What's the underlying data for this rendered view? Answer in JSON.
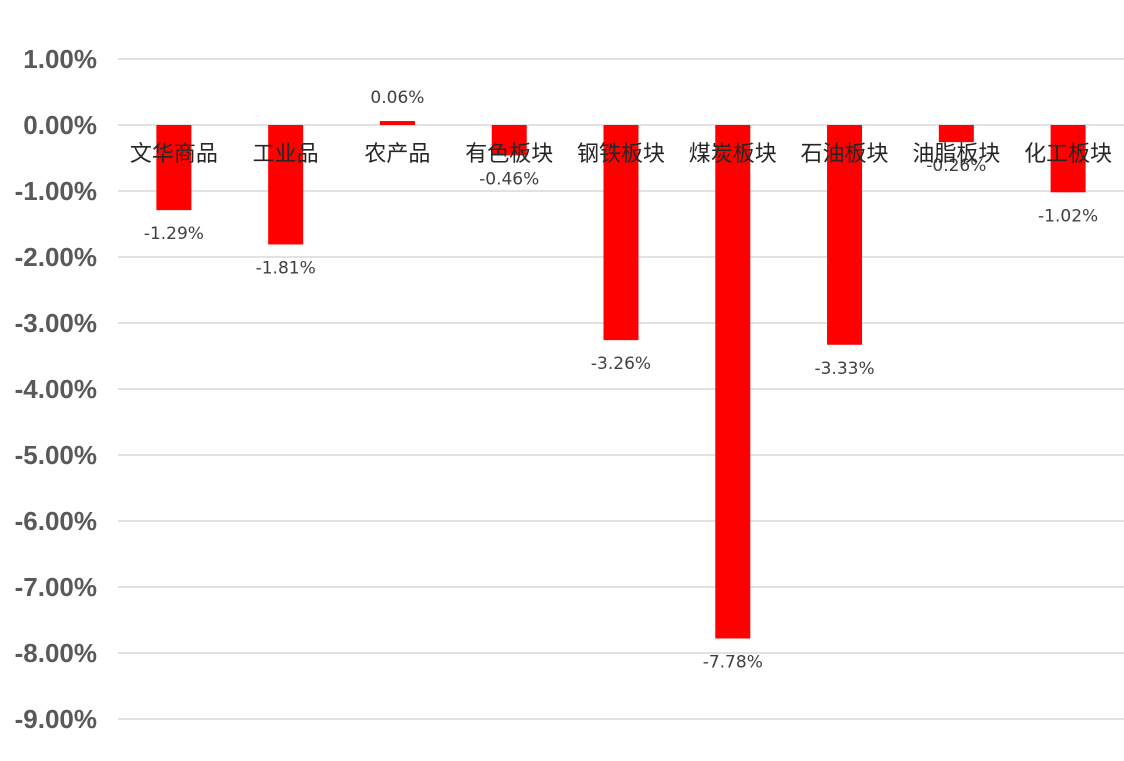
{
  "chart_data": {
    "type": "bar",
    "categories": [
      "文华商品",
      "工业品",
      "农产品",
      "有色板块",
      "钢铁板块",
      "煤炭板块",
      "石油板块",
      "油脂板块",
      "化工板块"
    ],
    "values": [
      -1.29,
      -1.81,
      0.06,
      -0.46,
      -3.26,
      -7.78,
      -3.33,
      -0.26,
      -1.02
    ],
    "data_labels": [
      "-1.29%",
      "-1.81%",
      "0.06%",
      "-0.46%",
      "-3.26%",
      "-7.78%",
      "-3.33%",
      "-0.26%",
      "-1.02%"
    ],
    "y_ticks": [
      1,
      0,
      -1,
      -2,
      -3,
      -4,
      -5,
      -6,
      -7,
      -8,
      -9
    ],
    "y_tick_labels": [
      "1.00%",
      "0.00%",
      "-1.00%",
      "-2.00%",
      "-3.00%",
      "-4.00%",
      "-5.00%",
      "-6.00%",
      "-7.00%",
      "-8.00%",
      "-9.00%"
    ],
    "ylim": [
      -9,
      1
    ],
    "bar_color": "#ff0000",
    "grid": true,
    "legend": false,
    "title": "",
    "xlabel": "",
    "ylabel": ""
  }
}
